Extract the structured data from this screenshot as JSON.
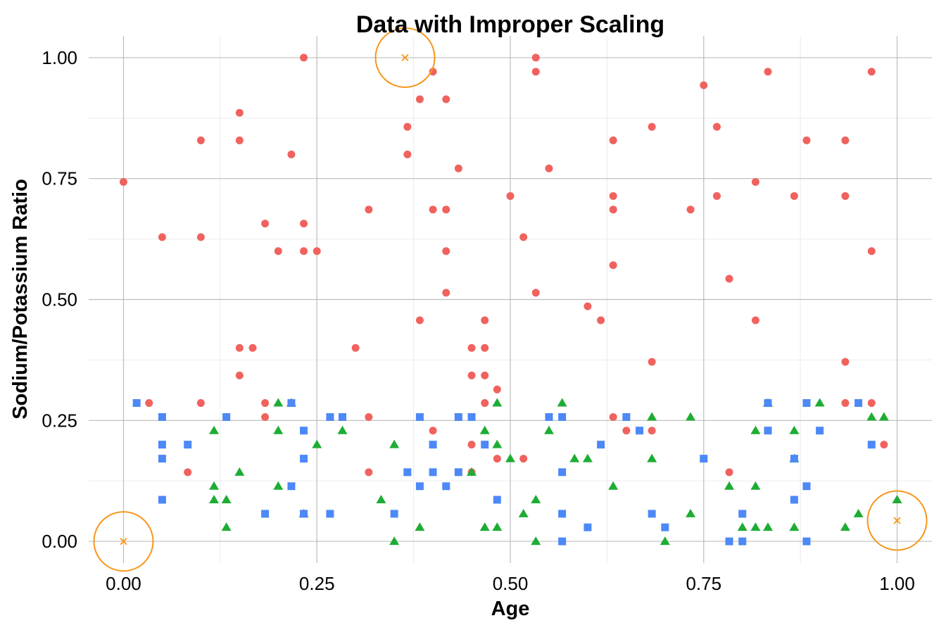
{
  "chart_data": {
    "type": "scatter",
    "title": "Data with Improper Scaling",
    "xlabel": "Age",
    "ylabel": "Sodium/Potassium Ratio",
    "xlim": [
      -0.045,
      1.045
    ],
    "ylim": [
      -0.045,
      1.045
    ],
    "xticks": [
      {
        "value": 0,
        "label": "0.00"
      },
      {
        "value": 0.25,
        "label": "0.25"
      },
      {
        "value": 0.5,
        "label": "0.50"
      },
      {
        "value": 0.75,
        "label": "0.75"
      },
      {
        "value": 1,
        "label": "1.00"
      }
    ],
    "yticks": [
      {
        "value": 0,
        "label": "0.00"
      },
      {
        "value": 0.25,
        "label": "0.25"
      },
      {
        "value": 0.5,
        "label": "0.50"
      },
      {
        "value": 0.75,
        "label": "0.75"
      },
      {
        "value": 1,
        "label": "1.00"
      }
    ],
    "grid": true,
    "legend": "none",
    "series": [
      {
        "shape": "circle",
        "color": "#F0625E",
        "points": [
          [
            0.0,
            0.743
          ],
          [
            0.033,
            0.286
          ],
          [
            0.05,
            0.629
          ],
          [
            0.083,
            0.143
          ],
          [
            0.1,
            0.829
          ],
          [
            0.1,
            0.629
          ],
          [
            0.1,
            0.286
          ],
          [
            0.133,
            0.257
          ],
          [
            0.15,
            0.886
          ],
          [
            0.15,
            0.829
          ],
          [
            0.15,
            0.4
          ],
          [
            0.15,
            0.343
          ],
          [
            0.167,
            0.4
          ],
          [
            0.183,
            0.657
          ],
          [
            0.183,
            0.286
          ],
          [
            0.183,
            0.257
          ],
          [
            0.2,
            0.6
          ],
          [
            0.217,
            0.8
          ],
          [
            0.217,
            0.286
          ],
          [
            0.233,
            1.0
          ],
          [
            0.233,
            0.657
          ],
          [
            0.233,
            0.6
          ],
          [
            0.25,
            0.6
          ],
          [
            0.3,
            0.4
          ],
          [
            0.317,
            0.686
          ],
          [
            0.317,
            0.257
          ],
          [
            0.317,
            0.143
          ],
          [
            0.367,
            0.857
          ],
          [
            0.367,
            0.8
          ],
          [
            0.383,
            0.914
          ],
          [
            0.383,
            0.457
          ],
          [
            0.4,
            0.971
          ],
          [
            0.4,
            0.686
          ],
          [
            0.4,
            0.229
          ],
          [
            0.417,
            0.914
          ],
          [
            0.417,
            0.686
          ],
          [
            0.417,
            0.6
          ],
          [
            0.417,
            0.514
          ],
          [
            0.433,
            0.771
          ],
          [
            0.45,
            0.4
          ],
          [
            0.45,
            0.343
          ],
          [
            0.45,
            0.2
          ],
          [
            0.45,
            0.143
          ],
          [
            0.467,
            0.457
          ],
          [
            0.467,
            0.4
          ],
          [
            0.467,
            0.343
          ],
          [
            0.467,
            0.286
          ],
          [
            0.483,
            0.314
          ],
          [
            0.483,
            0.171
          ],
          [
            0.5,
            0.714
          ],
          [
            0.517,
            0.629
          ],
          [
            0.517,
            0.171
          ],
          [
            0.533,
            1.0
          ],
          [
            0.533,
            0.971
          ],
          [
            0.533,
            0.514
          ],
          [
            0.55,
            0.771
          ],
          [
            0.6,
            0.486
          ],
          [
            0.617,
            0.457
          ],
          [
            0.633,
            0.829
          ],
          [
            0.633,
            0.714
          ],
          [
            0.633,
            0.686
          ],
          [
            0.633,
            0.571
          ],
          [
            0.633,
            0.257
          ],
          [
            0.65,
            0.229
          ],
          [
            0.683,
            0.857
          ],
          [
            0.683,
            0.371
          ],
          [
            0.683,
            0.229
          ],
          [
            0.733,
            0.686
          ],
          [
            0.75,
            0.943
          ],
          [
            0.767,
            0.857
          ],
          [
            0.767,
            0.714
          ],
          [
            0.783,
            0.543
          ],
          [
            0.783,
            0.143
          ],
          [
            0.817,
            0.743
          ],
          [
            0.817,
            0.457
          ],
          [
            0.833,
            0.971
          ],
          [
            0.867,
            0.714
          ],
          [
            0.883,
            0.829
          ],
          [
            0.933,
            0.829
          ],
          [
            0.933,
            0.714
          ],
          [
            0.933,
            0.371
          ],
          [
            0.933,
            0.286
          ],
          [
            0.967,
            0.971
          ],
          [
            0.967,
            0.6
          ],
          [
            0.967,
            0.286
          ],
          [
            0.983,
            0.2
          ]
        ]
      },
      {
        "shape": "triangle",
        "color": "#1EAD34",
        "points": [
          [
            0.117,
            0.229
          ],
          [
            0.117,
            0.114
          ],
          [
            0.117,
            0.086
          ],
          [
            0.133,
            0.086
          ],
          [
            0.133,
            0.029
          ],
          [
            0.15,
            0.143
          ],
          [
            0.2,
            0.286
          ],
          [
            0.2,
            0.229
          ],
          [
            0.2,
            0.114
          ],
          [
            0.217,
            0.286
          ],
          [
            0.233,
            0.057
          ],
          [
            0.25,
            0.2
          ],
          [
            0.283,
            0.229
          ],
          [
            0.333,
            0.086
          ],
          [
            0.35,
            0.2
          ],
          [
            0.35,
            0.0
          ],
          [
            0.383,
            0.029
          ],
          [
            0.45,
            0.143
          ],
          [
            0.467,
            0.229
          ],
          [
            0.467,
            0.029
          ],
          [
            0.483,
            0.286
          ],
          [
            0.483,
            0.2
          ],
          [
            0.483,
            0.029
          ],
          [
            0.5,
            0.171
          ],
          [
            0.517,
            0.057
          ],
          [
            0.533,
            0.086
          ],
          [
            0.533,
            0.0
          ],
          [
            0.55,
            0.229
          ],
          [
            0.567,
            0.286
          ],
          [
            0.583,
            0.171
          ],
          [
            0.6,
            0.171
          ],
          [
            0.633,
            0.114
          ],
          [
            0.683,
            0.257
          ],
          [
            0.683,
            0.171
          ],
          [
            0.7,
            0.0
          ],
          [
            0.733,
            0.257
          ],
          [
            0.733,
            0.057
          ],
          [
            0.783,
            0.114
          ],
          [
            0.8,
            0.029
          ],
          [
            0.817,
            0.229
          ],
          [
            0.817,
            0.114
          ],
          [
            0.817,
            0.029
          ],
          [
            0.833,
            0.286
          ],
          [
            0.833,
            0.029
          ],
          [
            0.867,
            0.229
          ],
          [
            0.867,
            0.171
          ],
          [
            0.867,
            0.029
          ],
          [
            0.9,
            0.286
          ],
          [
            0.933,
            0.029
          ],
          [
            0.95,
            0.057
          ],
          [
            0.967,
            0.257
          ],
          [
            0.983,
            0.257
          ],
          [
            1.0,
            0.086
          ]
        ]
      },
      {
        "shape": "square",
        "color": "#4D88F7",
        "points": [
          [
            0.017,
            0.286
          ],
          [
            0.05,
            0.257
          ],
          [
            0.05,
            0.2
          ],
          [
            0.05,
            0.171
          ],
          [
            0.05,
            0.086
          ],
          [
            0.083,
            0.2
          ],
          [
            0.133,
            0.257
          ],
          [
            0.183,
            0.057
          ],
          [
            0.217,
            0.286
          ],
          [
            0.217,
            0.114
          ],
          [
            0.233,
            0.229
          ],
          [
            0.233,
            0.171
          ],
          [
            0.233,
            0.057
          ],
          [
            0.267,
            0.257
          ],
          [
            0.267,
            0.057
          ],
          [
            0.283,
            0.257
          ],
          [
            0.35,
            0.057
          ],
          [
            0.367,
            0.143
          ],
          [
            0.383,
            0.257
          ],
          [
            0.383,
            0.114
          ],
          [
            0.4,
            0.2
          ],
          [
            0.4,
            0.143
          ],
          [
            0.417,
            0.114
          ],
          [
            0.433,
            0.257
          ],
          [
            0.433,
            0.143
          ],
          [
            0.45,
            0.257
          ],
          [
            0.467,
            0.2
          ],
          [
            0.483,
            0.086
          ],
          [
            0.55,
            0.257
          ],
          [
            0.567,
            0.257
          ],
          [
            0.567,
            0.143
          ],
          [
            0.567,
            0.057
          ],
          [
            0.567,
            0.0
          ],
          [
            0.6,
            0.029
          ],
          [
            0.617,
            0.2
          ],
          [
            0.65,
            0.257
          ],
          [
            0.667,
            0.229
          ],
          [
            0.683,
            0.057
          ],
          [
            0.7,
            0.029
          ],
          [
            0.75,
            0.171
          ],
          [
            0.783,
            0.0
          ],
          [
            0.8,
            0.057
          ],
          [
            0.8,
            0.0
          ],
          [
            0.833,
            0.286
          ],
          [
            0.833,
            0.229
          ],
          [
            0.867,
            0.171
          ],
          [
            0.867,
            0.086
          ],
          [
            0.883,
            0.286
          ],
          [
            0.883,
            0.114
          ],
          [
            0.883,
            0.0
          ],
          [
            0.9,
            0.229
          ],
          [
            0.95,
            0.286
          ],
          [
            0.967,
            0.2
          ]
        ]
      }
    ],
    "highlighted_points": {
      "color": "#F7961C",
      "marker": "x",
      "points": [
        [
          0.0,
          0.0
        ],
        [
          0.364,
          1.0
        ],
        [
          1.0,
          0.043
        ]
      ]
    }
  }
}
